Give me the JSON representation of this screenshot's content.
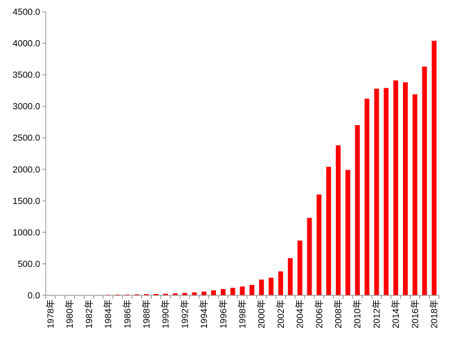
{
  "chart_data": {
    "type": "bar",
    "title": "",
    "xlabel": "",
    "ylabel": "",
    "ylim": [
      0,
      4500
    ],
    "yticks": [
      "0.0",
      "500.0",
      "1000.0",
      "1500.0",
      "2000.0",
      "2500.0",
      "3000.0",
      "3500.0",
      "4000.0",
      "4500.0"
    ],
    "grid": false,
    "legend": "none",
    "bar_color": "#ff0000",
    "categories": [
      "1978年",
      "1979年",
      "1980年",
      "1981年",
      "1982年",
      "1983年",
      "1984年",
      "1985年",
      "1986年",
      "1987年",
      "1988年",
      "1989年",
      "1990年",
      "1991年",
      "1992年",
      "1993年",
      "1994年",
      "1995年",
      "1996年",
      "1997年",
      "1998年",
      "1999年",
      "2000年",
      "2001年",
      "2002年",
      "2003年",
      "2004年",
      "2005年",
      "2006年",
      "2007年",
      "2008年",
      "2009年",
      "2010年",
      "2011年",
      "2012年",
      "2013年",
      "2014年",
      "2015年",
      "2016年",
      "2017年",
      "2018年"
    ],
    "visible_x_labels": [
      "1978年",
      "1980年",
      "1982年",
      "1984年",
      "1986年",
      "1988年",
      "1990年",
      "1992年",
      "1994年",
      "1996年",
      "1998年",
      "2000年",
      "2002年",
      "2004年",
      "2006年",
      "2008年",
      "2010年",
      "2012年",
      "2014年",
      "2016年",
      "2018年"
    ],
    "values": [
      2,
      3,
      4,
      4,
      5,
      7,
      9,
      11,
      12,
      16,
      20,
      22,
      25,
      30,
      38,
      48,
      60,
      80,
      100,
      120,
      140,
      165,
      250,
      280,
      380,
      590,
      870,
      1230,
      1600,
      2040,
      2380,
      1990,
      2700,
      3120,
      3280,
      3290,
      3410,
      3380,
      3190,
      3630,
      4040
    ]
  }
}
